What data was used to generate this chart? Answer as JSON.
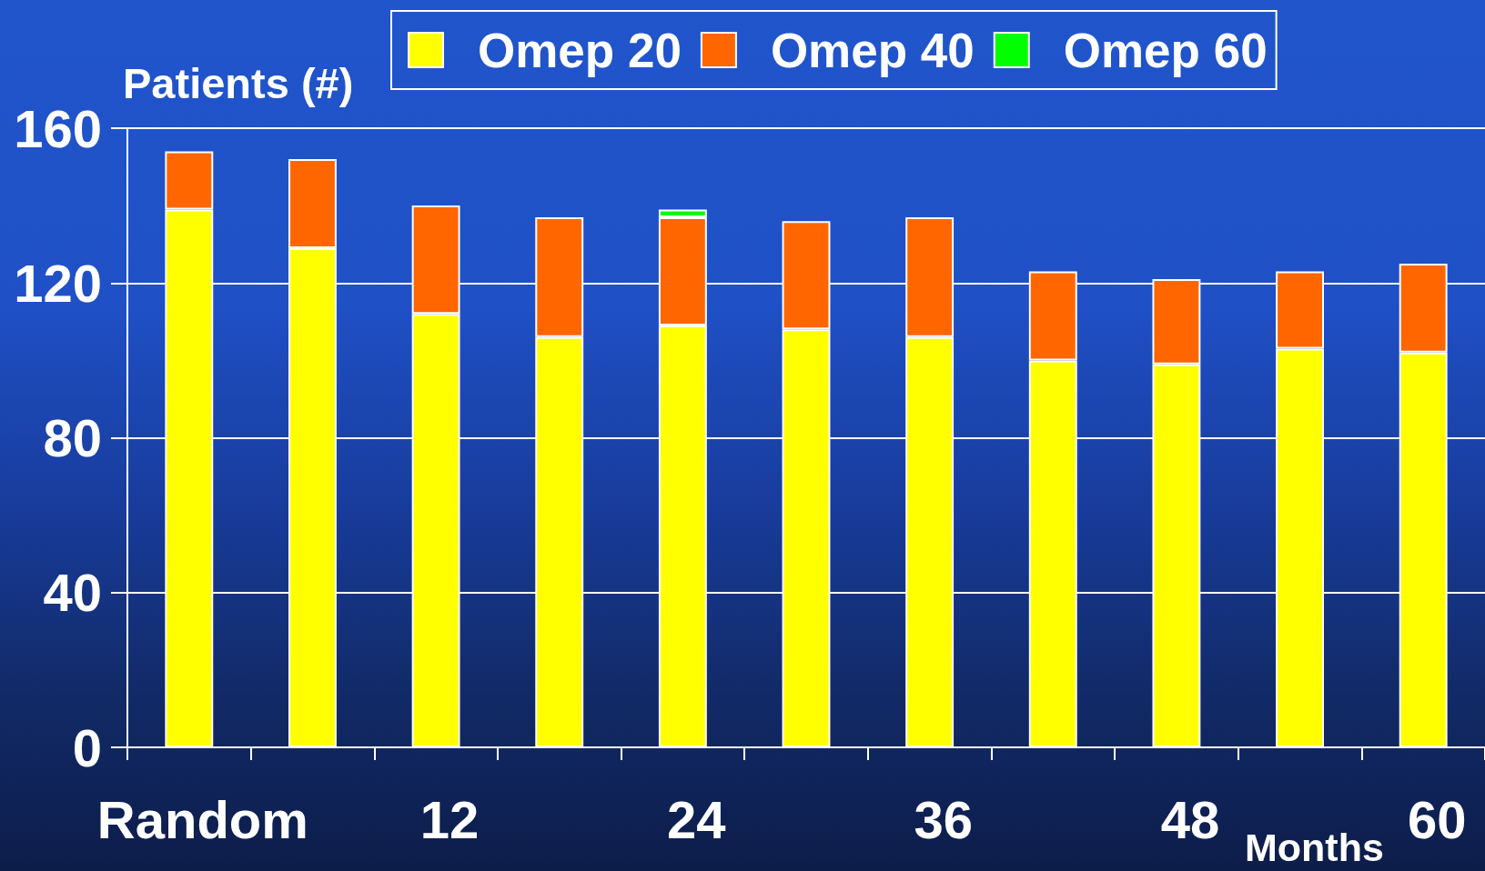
{
  "chart_data": {
    "type": "bar",
    "ylabel": "Patients (#)",
    "xlabel": "Months",
    "categories": [
      "Random",
      null,
      "12",
      null,
      "24",
      null,
      "36",
      null,
      "48",
      null,
      "60"
    ],
    "series": [
      {
        "name": "Omep 20",
        "color": "#ffff00",
        "values": [
          139,
          129,
          112,
          106,
          109,
          108,
          106,
          100,
          99,
          103,
          102
        ]
      },
      {
        "name": "Omep 40",
        "color": "#ff6600",
        "values": [
          15,
          23,
          28,
          31,
          28,
          28,
          31,
          23,
          22,
          20,
          23
        ]
      },
      {
        "name": "Omep 60",
        "color": "#00ff00",
        "values": [
          null,
          null,
          null,
          null,
          2,
          null,
          null,
          null,
          null,
          null,
          null
        ]
      }
    ],
    "stacked": true,
    "ylim": [
      0,
      160
    ],
    "yticks": [
      0,
      40,
      80,
      120,
      160
    ],
    "grid": "y",
    "legend": "top"
  }
}
